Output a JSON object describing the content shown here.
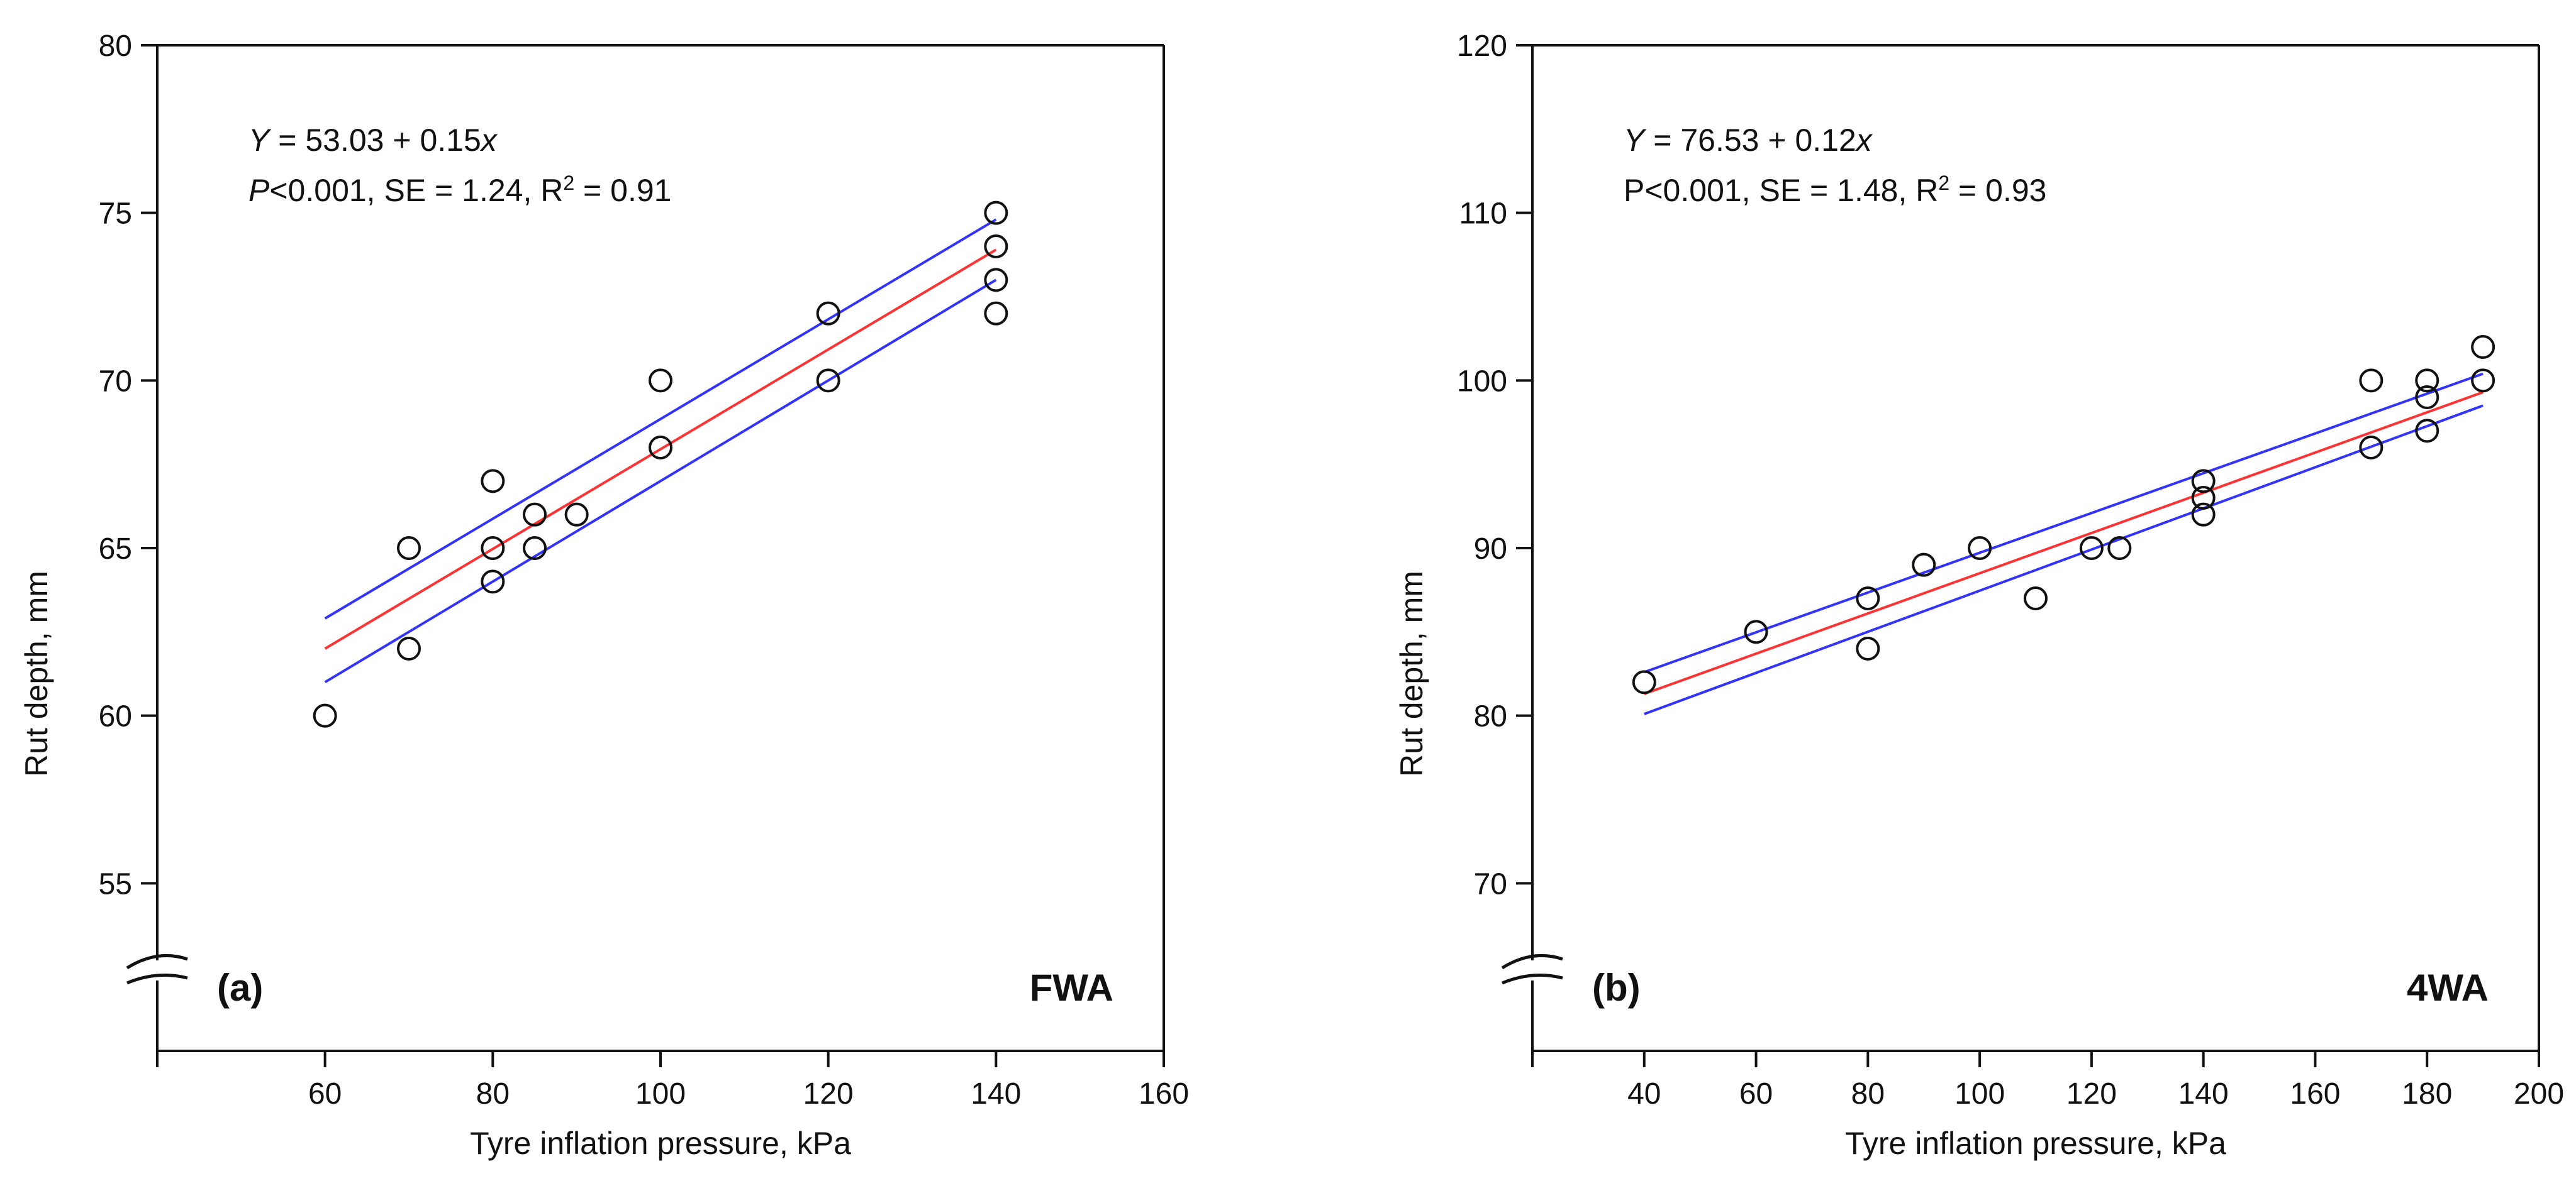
{
  "chart_data": [
    {
      "type": "scatter",
      "panel_label": "(a)",
      "tag": "FWA",
      "xlabel": "Tyre inflation pressure, kPa",
      "ylabel": "Rut depth, mm",
      "xlim": [
        40,
        160
      ],
      "ylim": [
        50,
        80
      ],
      "x_ticks": [
        60,
        80,
        100,
        120,
        140,
        160
      ],
      "y_ticks": [
        55,
        60,
        65,
        70,
        75,
        80
      ],
      "axis_break": true,
      "equation": {
        "prefix": "Y",
        "body": " = 53.03 + 0.15",
        "var": "x"
      },
      "stats": {
        "p": "P",
        "p_rest": "<0.001, SE = 1.24, R",
        "sup": "2",
        "tail": " = 0.91"
      },
      "points": [
        {
          "x": 60,
          "y": 60
        },
        {
          "x": 70,
          "y": 65
        },
        {
          "x": 70,
          "y": 62
        },
        {
          "x": 80,
          "y": 67
        },
        {
          "x": 80,
          "y": 65
        },
        {
          "x": 80,
          "y": 64
        },
        {
          "x": 85,
          "y": 66
        },
        {
          "x": 85,
          "y": 65
        },
        {
          "x": 90,
          "y": 66
        },
        {
          "x": 100,
          "y": 70
        },
        {
          "x": 100,
          "y": 68
        },
        {
          "x": 120,
          "y": 72
        },
        {
          "x": 120,
          "y": 70
        },
        {
          "x": 140,
          "y": 75
        },
        {
          "x": 140,
          "y": 74
        },
        {
          "x": 140,
          "y": 73
        },
        {
          "x": 140,
          "y": 72
        }
      ],
      "fit": {
        "x": [
          60,
          140
        ],
        "y": [
          62.0,
          73.9
        ],
        "color": "#ff3333"
      },
      "ci_upper": {
        "x": [
          60,
          140
        ],
        "y": [
          62.9,
          74.8
        ],
        "color": "#3333ff"
      },
      "ci_lower": {
        "x": [
          60,
          140
        ],
        "y": [
          61.0,
          73.0
        ],
        "color": "#3333ff"
      }
    },
    {
      "type": "scatter",
      "panel_label": "(b)",
      "tag": "4WA",
      "xlabel": "Tyre inflation pressure, kPa",
      "ylabel": "Rut depth, mm",
      "xlim": [
        20,
        200
      ],
      "ylim": [
        60,
        120
      ],
      "x_ticks": [
        40,
        60,
        80,
        100,
        120,
        140,
        160,
        180,
        200
      ],
      "y_ticks": [
        70,
        80,
        90,
        100,
        110,
        120
      ],
      "axis_break": true,
      "equation": {
        "prefix": "Y",
        "body": " = 76.53 + 0.12",
        "var": "x"
      },
      "stats": {
        "p": "P",
        "p_rest": "<0.001, SE = 1.48, R",
        "sup": "2",
        "tail": " = 0.93"
      },
      "points": [
        {
          "x": 40,
          "y": 82
        },
        {
          "x": 60,
          "y": 85
        },
        {
          "x": 80,
          "y": 87
        },
        {
          "x": 80,
          "y": 84
        },
        {
          "x": 90,
          "y": 89
        },
        {
          "x": 100,
          "y": 90
        },
        {
          "x": 110,
          "y": 87
        },
        {
          "x": 120,
          "y": 90
        },
        {
          "x": 125,
          "y": 90
        },
        {
          "x": 140,
          "y": 94
        },
        {
          "x": 140,
          "y": 93
        },
        {
          "x": 140,
          "y": 92
        },
        {
          "x": 170,
          "y": 100
        },
        {
          "x": 170,
          "y": 96
        },
        {
          "x": 180,
          "y": 100
        },
        {
          "x": 180,
          "y": 99
        },
        {
          "x": 180,
          "y": 97
        },
        {
          "x": 190,
          "y": 102
        },
        {
          "x": 190,
          "y": 100
        }
      ],
      "fit": {
        "x": [
          40,
          190
        ],
        "y": [
          81.3,
          99.3
        ],
        "color": "#ff3333"
      },
      "ci_upper": {
        "x": [
          40,
          190
        ],
        "y": [
          82.6,
          100.4
        ],
        "color": "#3333ff"
      },
      "ci_lower": {
        "x": [
          40,
          190
        ],
        "y": [
          80.1,
          98.5
        ],
        "color": "#3333ff"
      }
    }
  ]
}
